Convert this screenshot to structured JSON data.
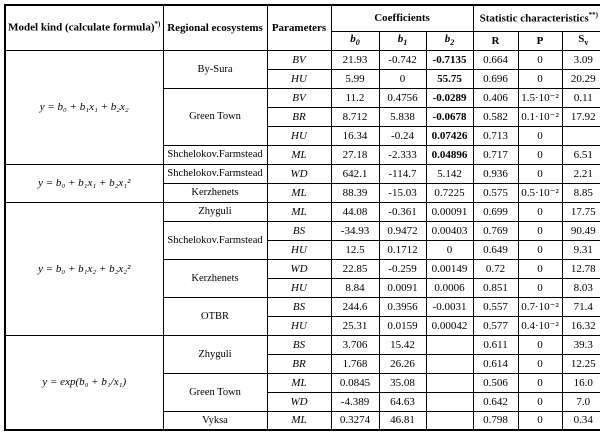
{
  "table": {
    "header": {
      "model_kind": "Model kind (calculate formula)",
      "model_kind_note": "*)",
      "regional": "Regional ecosystems",
      "parameters": "Parameters",
      "coefficients": "Coefficients",
      "statistics": "Statistic characteristics",
      "statistics_note": "**)",
      "sub_b0": {
        "base": "b",
        "sub": "0"
      },
      "sub_b1": {
        "base": "b",
        "sub": "1"
      },
      "sub_b2": {
        "base": "b",
        "sub": "2"
      },
      "sub_R": "R",
      "sub_P": "P",
      "sub_Sv": {
        "base": "S",
        "sub": "v"
      }
    },
    "groups": [
      {
        "formula": "y = b₀ + b₁x₁ + b₂x₂",
        "b2_bold": true,
        "ecosystems": [
          {
            "name": "By-Sura",
            "rows": [
              {
                "param": "BV",
                "b0": "21.93",
                "b1": "-0.742",
                "b2": "-0.7135",
                "R": "0.664",
                "P": "0",
                "Sv": "3.09"
              },
              {
                "param": "HU",
                "b0": "5.99",
                "b1": "0",
                "b2": "55.75",
                "R": "0.696",
                "P": "0",
                "Sv": "20.29"
              }
            ]
          },
          {
            "name": "Green Town",
            "rows": [
              {
                "param": "BV",
                "b0": "11.2",
                "b1": "0.4756",
                "b2": "-0.0289",
                "R": "0.406",
                "P": "1.5·10⁻²",
                "Sv": "0.11"
              },
              {
                "param": "BR",
                "b0": "8.712",
                "b1": "5.838",
                "b2": "-0.0678",
                "R": "0.582",
                "P": "0.1·10⁻²",
                "Sv": "17.92"
              },
              {
                "param": "HU",
                "b0": "16.34",
                "b1": "-0.24",
                "b2": "0.07426",
                "R": "0.713",
                "P": "0",
                "Sv": ""
              }
            ]
          },
          {
            "name": "Shchelokov.Farmstead",
            "rows": [
              {
                "param": "ML",
                "b0": "27.18",
                "b1": "-2.333",
                "b2": "0.04896",
                "R": "0.717",
                "P": "0",
                "Sv": "6.51"
              }
            ]
          }
        ]
      },
      {
        "formula": "y = b₀ + b₁x₁ + b₂x₁²",
        "b2_bold": false,
        "ecosystems": [
          {
            "name": "Shchelokov.Farmstead",
            "rows": [
              {
                "param": "WD",
                "b0": "642.1",
                "b1": "-114.7",
                "b2": "5.142",
                "R": "0.936",
                "P": "0",
                "Sv": "2.21"
              }
            ]
          },
          {
            "name": "Kerzhenets",
            "rows": [
              {
                "param": "ML",
                "b0": "88.39",
                "b1": "-15.03",
                "b2": "0.7225",
                "R": "0.575",
                "P": "0.5·10⁻²",
                "Sv": "8.85"
              }
            ]
          }
        ]
      },
      {
        "formula": "y = b₀ + b₁x₂ + b₂x₂²",
        "b2_bold": false,
        "ecosystems": [
          {
            "name": "Zhyguli",
            "rows": [
              {
                "param": "ML",
                "b0": "44.08",
                "b1": "-0.361",
                "b2": "0.00091",
                "R": "0.699",
                "P": "0",
                "Sv": "17.75"
              }
            ]
          },
          {
            "name": "Shchelokov.Farmstead",
            "rows": [
              {
                "param": "BS",
                "b0": "-34.93",
                "b1": "0.9472",
                "b2": "0.00403",
                "R": "0.769",
                "P": "0",
                "Sv": "90.49"
              },
              {
                "param": "HU",
                "b0": "12.5",
                "b1": "0.1712",
                "b2": "0",
                "R": "0.649",
                "P": "0",
                "Sv": "9.31"
              }
            ]
          },
          {
            "name": "Kerzhenets",
            "rows": [
              {
                "param": "WD",
                "b0": "22.85",
                "b1": "-0.259",
                "b2": "0.00149",
                "R": "0.72",
                "P": "0",
                "Sv": "12.78"
              },
              {
                "param": "HU",
                "b0": "8.84",
                "b1": "0.0091",
                "b2": "0.0006",
                "R": "0.851",
                "P": "0",
                "Sv": "8.03"
              }
            ]
          },
          {
            "name": "OTBR",
            "rows": [
              {
                "param": "BS",
                "b0": "244.6",
                "b1": "0.3956",
                "b2": "-0.0031",
                "R": "0.557",
                "P": "0.7·10⁻²",
                "Sv": "71.4"
              },
              {
                "param": "HU",
                "b0": "25.31",
                "b1": "0.0159",
                "b2": "0.00042",
                "R": "0.577",
                "P": "0.4·10⁻²",
                "Sv": "16.32"
              }
            ]
          }
        ]
      },
      {
        "formula": "y = exp(b₀ + b₁/x₁)",
        "b2_bold": false,
        "ecosystems": [
          {
            "name": "Zhyguli",
            "rows": [
              {
                "param": "BS",
                "b0": "3.706",
                "b1": "15.42",
                "b2": "",
                "R": "0.611",
                "P": "0",
                "Sv": "39.3"
              },
              {
                "param": "BR",
                "b0": "1.768",
                "b1": "26.26",
                "b2": "",
                "R": "0.614",
                "P": "0",
                "Sv": "12.25"
              }
            ]
          },
          {
            "name": "Green Town",
            "rows": [
              {
                "param": "ML",
                "b0": "0.0845",
                "b1": "35.08",
                "b2": "",
                "R": "0.506",
                "P": "0",
                "Sv": "16.0"
              },
              {
                "param": "WD",
                "b0": "-4.389",
                "b1": "64.63",
                "b2": "",
                "R": "0.642",
                "P": "0",
                "Sv": "7.0"
              }
            ]
          },
          {
            "name": "Vyksa",
            "rows": [
              {
                "param": "ML",
                "b0": "0.3274",
                "b1": "46.81",
                "b2": "",
                "R": "0.798",
                "P": "0",
                "Sv": "0.34"
              }
            ]
          }
        ]
      }
    ]
  }
}
